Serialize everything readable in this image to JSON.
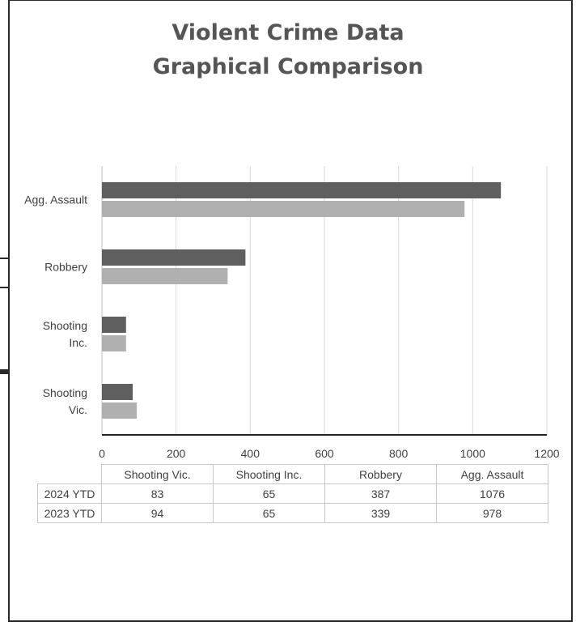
{
  "title_line1": "Violent Crime Data",
  "title_line2": "Graphical Comparison",
  "chart_data": {
    "type": "bar",
    "orientation": "horizontal",
    "categories": [
      "Agg. Assault",
      "Robbery",
      "Shooting Inc.",
      "Shooting Vic."
    ],
    "series": [
      {
        "name": "2024 YTD",
        "values": [
          1076,
          387,
          65,
          83
        ],
        "color": "#5f5f5f"
      },
      {
        "name": "2023 YTD",
        "values": [
          978,
          339,
          65,
          94
        ],
        "color": "#b0b0b0"
      }
    ],
    "xlim": [
      0,
      1200
    ],
    "xticks": [
      0,
      200,
      400,
      600,
      800,
      1000,
      1200
    ],
    "grid": true,
    "legend": "data table below chart"
  },
  "table": {
    "headers": [
      "Shooting Vic.",
      "Shooting Inc.",
      "Robbery",
      "Agg. Assault"
    ],
    "rows": [
      {
        "label": "2024 YTD",
        "cells": [
          "83",
          "65",
          "387",
          "1076"
        ]
      },
      {
        "label": "2023 YTD",
        "cells": [
          "94",
          "65",
          "339",
          "978"
        ]
      }
    ]
  }
}
